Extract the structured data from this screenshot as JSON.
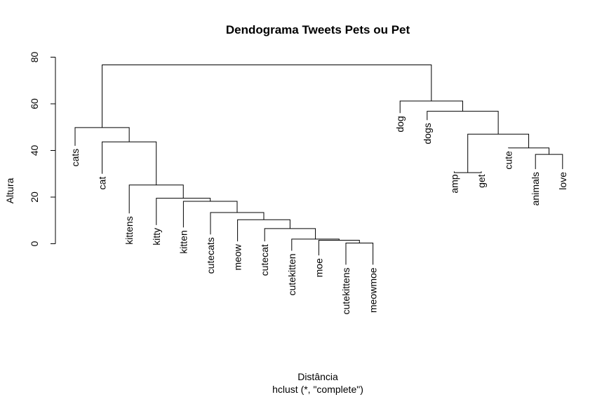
{
  "chart_data": {
    "type": "dendrogram",
    "title": "Dendograma Tweets Pets ou Pet",
    "xlabel": "Distância",
    "subtitle": "hclust (*, \"complete\")",
    "ylabel": "Altura",
    "ylim": [
      0,
      80
    ],
    "yticks": [
      0,
      20,
      40,
      60,
      80
    ],
    "leaves": [
      {
        "label": "cats",
        "leaf_top": 42
      },
      {
        "label": "cat",
        "leaf_top": 30
      },
      {
        "label": "kittens",
        "leaf_top": 13
      },
      {
        "label": "kitty",
        "leaf_top": 8
      },
      {
        "label": "kitten",
        "leaf_top": 7
      },
      {
        "label": "cutecats",
        "leaf_top": 4
      },
      {
        "label": "meow",
        "leaf_top": 1
      },
      {
        "label": "cutecat",
        "leaf_top": 1
      },
      {
        "label": "cutekitten",
        "leaf_top": -3
      },
      {
        "label": "moe",
        "leaf_top": -5
      },
      {
        "label": "cutekittens",
        "leaf_top": -9
      },
      {
        "label": "meowmoe",
        "leaf_top": -9
      },
      {
        "label": "dog",
        "leaf_top": 56
      },
      {
        "label": "dogs",
        "leaf_top": 53
      },
      {
        "label": "amp",
        "leaf_top": 31
      },
      {
        "label": "get",
        "leaf_top": 31
      },
      {
        "label": "cute",
        "leaf_top": 41
      },
      {
        "label": "animals",
        "leaf_top": 32
      },
      {
        "label": "love",
        "leaf_top": 32
      }
    ],
    "merges": [
      {
        "left": "cutekittens",
        "right": "meowmoe",
        "height": 0.3
      },
      {
        "left": "moe",
        "right": "#1",
        "height": 1.5
      },
      {
        "left": "cutekitten",
        "right": "#2",
        "height": 2.0
      },
      {
        "left": "cutecat",
        "right": "#3",
        "height": 6.5
      },
      {
        "left": "meow",
        "right": "#4",
        "height": 10.3
      },
      {
        "left": "cutecats",
        "right": "#5",
        "height": 13.4
      },
      {
        "left": "kitten",
        "right": "#6",
        "height": 18.2
      },
      {
        "left": "kitty",
        "right": "#7",
        "height": 19.5
      },
      {
        "left": "kittens",
        "right": "#8",
        "height": 25.2
      },
      {
        "left": "cat",
        "right": "#9",
        "height": 43.7
      },
      {
        "left": "cats",
        "right": "#10",
        "height": 49.8
      },
      {
        "left": "amp",
        "right": "get",
        "height": 30.5
      },
      {
        "left": "animals",
        "right": "love",
        "height": 38.3
      },
      {
        "left": "cute",
        "right": "#13",
        "height": 41.1
      },
      {
        "left": "#12",
        "right": "#14",
        "height": 47.0
      },
      {
        "left": "dogs",
        "right": "#15",
        "height": 56.8
      },
      {
        "left": "dog",
        "right": "#16",
        "height": 61.2
      },
      {
        "left": "#11",
        "right": "#17",
        "height": 76.7
      }
    ]
  }
}
